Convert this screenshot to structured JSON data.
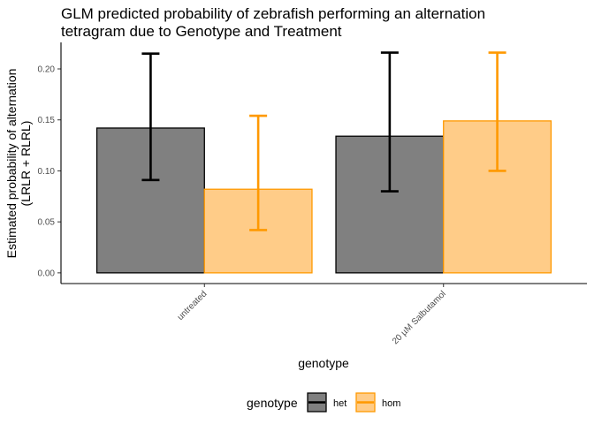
{
  "chart_data": {
    "type": "bar",
    "title": "GLM predicted probability of zebrafish performing an alternation tetragram due to Genotype and Treatment",
    "title_lines": [
      "GLM predicted probability of zebrafish performing an alternation",
      "tetragram due to Genotype and Treatment"
    ],
    "xlabel": "genotype",
    "ylabel_lines": [
      "Estimated probability of alternation",
      "(LRLR + RLRL)"
    ],
    "categories": [
      "untreated",
      "20 µM Salbutamol"
    ],
    "yticks": [
      0.0,
      0.05,
      0.1,
      0.15,
      0.2
    ],
    "ytick_labels": [
      "0.00",
      "0.05",
      "0.10",
      "0.15",
      "0.20"
    ],
    "ylim": [
      -0.0105,
      0.226
    ],
    "grid": false,
    "legend": {
      "title": "genotype",
      "position": "bottom"
    },
    "series": [
      {
        "name": "het",
        "fill": "#808080",
        "stroke": "#000000",
        "values": [
          0.142,
          0.134
        ],
        "lower": [
          0.091,
          0.08
        ],
        "upper": [
          0.215,
          0.216
        ]
      },
      {
        "name": "hom",
        "fill": "#FFCC88",
        "stroke": "#FF9900",
        "values": [
          0.082,
          0.149
        ],
        "lower": [
          0.042,
          0.1
        ],
        "upper": [
          0.154,
          0.216
        ]
      }
    ]
  }
}
